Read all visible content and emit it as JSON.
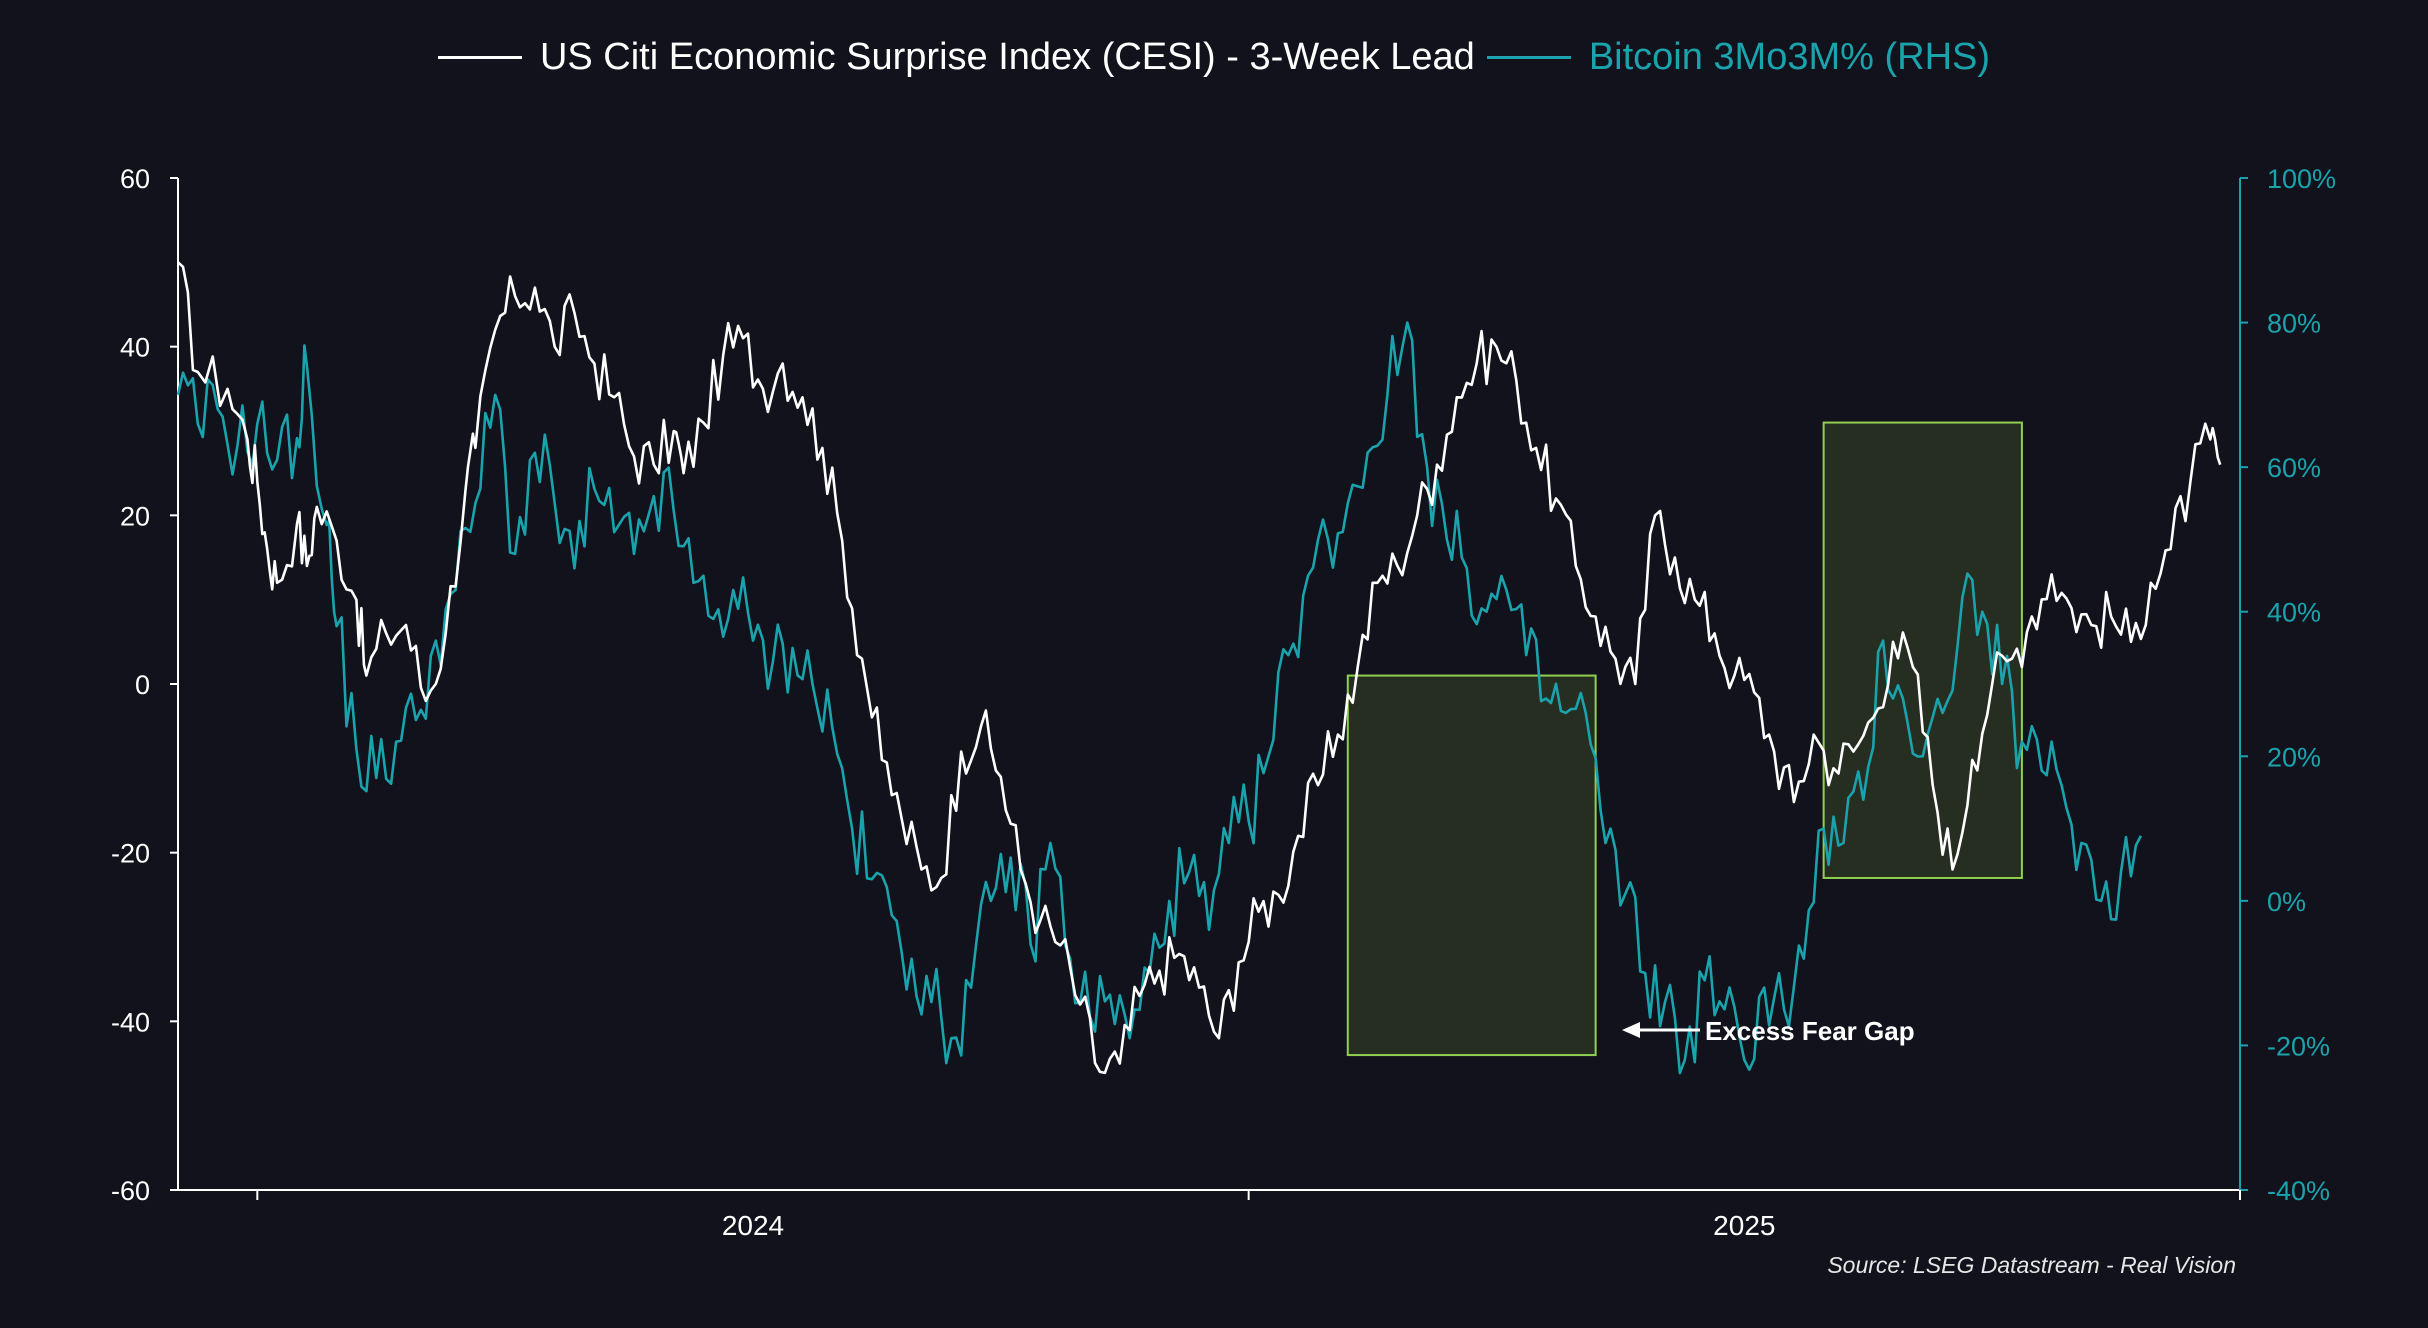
{
  "colors": {
    "background": "#11121c",
    "cesi": "#ffffff",
    "btc": "#1aa3ad",
    "box_stroke": "#8fd14f",
    "box_fill": "#2a3322"
  },
  "legend": [
    {
      "label": "US Citi Economic Surprise Index (CESI) - 3-Week Lead",
      "color": "#ffffff"
    },
    {
      "label": "Bitcoin 3Mo3M% (RHS)",
      "color": "#1aa3ad"
    }
  ],
  "source": "Source: LSEG Datastream - Real Vision",
  "annotation": {
    "label": "Excess Fear Gap"
  },
  "chart_data": {
    "type": "line",
    "title": "",
    "left_axis": {
      "min": -60,
      "max": 60,
      "ticks": [
        -60,
        -40,
        -20,
        0,
        20,
        40,
        60
      ],
      "labels": [
        "-60",
        "-40",
        "-20",
        "0",
        "20",
        "40",
        "60"
      ]
    },
    "right_axis": {
      "min": -40,
      "max": 100,
      "ticks": [
        -40,
        -20,
        0,
        20,
        40,
        60,
        80,
        100
      ],
      "labels": [
        "-40%",
        "-20%",
        "0%",
        "20%",
        "40%",
        "60%",
        "80%",
        "100%"
      ]
    },
    "x_axis": {
      "start": 2023.42,
      "end": 2025.5,
      "tick_marks": [
        2023.5,
        2024.5,
        2025.5
      ],
      "labels": [
        {
          "value": 2024.0,
          "text": "2024"
        },
        {
          "value": 2025.0,
          "text": "2025"
        }
      ]
    },
    "highlight_boxes": [
      {
        "x0": 2024.6,
        "x1": 2024.85,
        "y0_left": -44,
        "y1_left": 1
      },
      {
        "x0": 2025.08,
        "x1": 2025.28,
        "y0_left": -23,
        "y1_left": 31
      }
    ],
    "series": [
      {
        "name": "US Citi Economic Surprise Index (CESI) - 3-Week Lead",
        "axis": "left",
        "points": [
          [
            2023.42,
            50
          ],
          [
            2023.44,
            37
          ],
          [
            2023.47,
            35
          ],
          [
            2023.49,
            29
          ],
          [
            2023.5,
            24
          ],
          [
            2023.51,
            16
          ],
          [
            2023.52,
            12
          ],
          [
            2023.54,
            19
          ],
          [
            2023.55,
            14
          ],
          [
            2023.56,
            21
          ],
          [
            2023.58,
            17
          ],
          [
            2023.6,
            10
          ],
          [
            2023.61,
            1
          ],
          [
            2023.63,
            6
          ],
          [
            2023.65,
            7
          ],
          [
            2023.67,
            -2
          ],
          [
            2023.69,
            6
          ],
          [
            2023.71,
            23
          ],
          [
            2023.72,
            28
          ],
          [
            2023.74,
            42
          ],
          [
            2023.76,
            46
          ],
          [
            2023.78,
            47
          ],
          [
            2023.8,
            40
          ],
          [
            2023.82,
            44
          ],
          [
            2023.84,
            38
          ],
          [
            2023.86,
            34
          ],
          [
            2023.88,
            27
          ],
          [
            2023.9,
            26
          ],
          [
            2023.92,
            30
          ],
          [
            2023.93,
            25
          ],
          [
            2023.95,
            31
          ],
          [
            2023.97,
            39
          ],
          [
            2023.99,
            41
          ],
          [
            2024.01,
            35
          ],
          [
            2024.03,
            38
          ],
          [
            2024.05,
            34
          ],
          [
            2024.07,
            28
          ],
          [
            2024.09,
            17
          ],
          [
            2024.11,
            3
          ],
          [
            2024.13,
            -9
          ],
          [
            2024.15,
            -16
          ],
          [
            2024.17,
            -22
          ],
          [
            2024.19,
            -23
          ],
          [
            2024.21,
            -8
          ],
          [
            2024.23,
            -5
          ],
          [
            2024.25,
            -11
          ],
          [
            2024.27,
            -22
          ],
          [
            2024.29,
            -28
          ],
          [
            2024.31,
            -31
          ],
          [
            2024.33,
            -38
          ],
          [
            2024.35,
            -46
          ],
          [
            2024.37,
            -45
          ],
          [
            2024.39,
            -37
          ],
          [
            2024.41,
            -34
          ],
          [
            2024.43,
            -32
          ],
          [
            2024.45,
            -36
          ],
          [
            2024.47,
            -42
          ],
          [
            2024.49,
            -33
          ],
          [
            2024.51,
            -27
          ],
          [
            2024.53,
            -25
          ],
          [
            2024.55,
            -18
          ],
          [
            2024.57,
            -12
          ],
          [
            2024.59,
            -6
          ],
          [
            2024.61,
            2
          ],
          [
            2024.63,
            12
          ],
          [
            2024.65,
            14
          ],
          [
            2024.67,
            20
          ],
          [
            2024.69,
            26
          ],
          [
            2024.71,
            34
          ],
          [
            2024.73,
            38
          ],
          [
            2024.75,
            40
          ],
          [
            2024.77,
            36
          ],
          [
            2024.79,
            28
          ],
          [
            2024.81,
            22
          ],
          [
            2024.83,
            14
          ],
          [
            2024.85,
            8
          ],
          [
            2024.87,
            3
          ],
          [
            2024.89,
            0
          ],
          [
            2024.91,
            20
          ],
          [
            2024.93,
            15
          ],
          [
            2024.95,
            10
          ],
          [
            2024.97,
            6
          ],
          [
            2024.99,
            1
          ],
          [
            2025.01,
            -1
          ],
          [
            2025.03,
            -8
          ],
          [
            2025.05,
            -14
          ],
          [
            2025.07,
            -6
          ],
          [
            2025.09,
            -10
          ],
          [
            2025.11,
            -8
          ],
          [
            2025.13,
            -4
          ],
          [
            2025.15,
            5
          ],
          [
            2025.17,
            2
          ],
          [
            2025.19,
            -12
          ],
          [
            2025.21,
            -22
          ],
          [
            2025.23,
            -9
          ],
          [
            2025.25,
            0
          ],
          [
            2025.27,
            3
          ],
          [
            2025.29,
            8
          ],
          [
            2025.31,
            13
          ],
          [
            2025.33,
            9
          ],
          [
            2025.35,
            7
          ],
          [
            2025.37,
            8
          ],
          [
            2025.39,
            5
          ],
          [
            2025.41,
            12
          ],
          [
            2025.43,
            16
          ],
          [
            2025.45,
            24
          ],
          [
            2025.47,
            29
          ],
          [
            2025.48,
            26
          ]
        ]
      },
      {
        "name": "Bitcoin 3Mo3M% (RHS)",
        "axis": "right",
        "points": [
          [
            2023.42,
            70
          ],
          [
            2023.44,
            66
          ],
          [
            2023.46,
            68
          ],
          [
            2023.48,
            63
          ],
          [
            2023.5,
            66
          ],
          [
            2023.52,
            61
          ],
          [
            2023.54,
            64
          ],
          [
            2023.55,
            74
          ],
          [
            2023.57,
            52
          ],
          [
            2023.58,
            38
          ],
          [
            2023.6,
            21
          ],
          [
            2023.62,
            17
          ],
          [
            2023.64,
            22
          ],
          [
            2023.66,
            25
          ],
          [
            2023.68,
            36
          ],
          [
            2023.7,
            43
          ],
          [
            2023.72,
            55
          ],
          [
            2023.74,
            70
          ],
          [
            2023.76,
            48
          ],
          [
            2023.78,
            62
          ],
          [
            2023.8,
            55
          ],
          [
            2023.82,
            46
          ],
          [
            2023.84,
            57
          ],
          [
            2023.86,
            51
          ],
          [
            2023.88,
            48
          ],
          [
            2023.9,
            56
          ],
          [
            2023.92,
            54
          ],
          [
            2023.94,
            44
          ],
          [
            2023.96,
            39
          ],
          [
            2023.98,
            43
          ],
          [
            2024.0,
            36
          ],
          [
            2024.02,
            33
          ],
          [
            2024.04,
            35
          ],
          [
            2024.06,
            30
          ],
          [
            2024.08,
            24
          ],
          [
            2024.1,
            10
          ],
          [
            2024.12,
            3
          ],
          [
            2024.14,
            -2
          ],
          [
            2024.16,
            -8
          ],
          [
            2024.18,
            -14
          ],
          [
            2024.2,
            -19
          ],
          [
            2024.22,
            -12
          ],
          [
            2024.24,
            0
          ],
          [
            2024.26,
            6
          ],
          [
            2024.28,
            -6
          ],
          [
            2024.3,
            8
          ],
          [
            2024.32,
            -8
          ],
          [
            2024.34,
            -16
          ],
          [
            2024.36,
            -13
          ],
          [
            2024.38,
            -19
          ],
          [
            2024.4,
            -10
          ],
          [
            2024.42,
            0
          ],
          [
            2024.44,
            4
          ],
          [
            2024.46,
            -4
          ],
          [
            2024.48,
            8
          ],
          [
            2024.5,
            11
          ],
          [
            2024.52,
            20
          ],
          [
            2024.54,
            34
          ],
          [
            2024.56,
            45
          ],
          [
            2024.58,
            50
          ],
          [
            2024.6,
            55
          ],
          [
            2024.62,
            62
          ],
          [
            2024.64,
            70
          ],
          [
            2024.66,
            80
          ],
          [
            2024.68,
            60
          ],
          [
            2024.7,
            50
          ],
          [
            2024.72,
            46
          ],
          [
            2024.74,
            40
          ],
          [
            2024.76,
            43
          ],
          [
            2024.78,
            34
          ],
          [
            2024.8,
            28
          ],
          [
            2024.82,
            26
          ],
          [
            2024.84,
            26
          ],
          [
            2024.86,
            8
          ],
          [
            2024.88,
            1
          ],
          [
            2024.9,
            -10
          ],
          [
            2024.92,
            -14
          ],
          [
            2024.94,
            -22
          ],
          [
            2024.96,
            -11
          ],
          [
            2024.98,
            -15
          ],
          [
            2025.0,
            -22
          ],
          [
            2025.02,
            -12
          ],
          [
            2025.04,
            -15
          ],
          [
            2025.06,
            -8
          ],
          [
            2025.08,
            10
          ],
          [
            2025.1,
            8
          ],
          [
            2025.12,
            14
          ],
          [
            2025.14,
            36
          ],
          [
            2025.16,
            28
          ],
          [
            2025.18,
            20
          ],
          [
            2025.2,
            26
          ],
          [
            2025.22,
            42
          ],
          [
            2025.24,
            40
          ],
          [
            2025.26,
            30
          ],
          [
            2025.28,
            22
          ],
          [
            2025.3,
            18
          ],
          [
            2025.32,
            16
          ],
          [
            2025.34,
            8
          ],
          [
            2025.36,
            0
          ],
          [
            2025.38,
            4
          ],
          [
            2025.4,
            9
          ]
        ]
      }
    ]
  }
}
